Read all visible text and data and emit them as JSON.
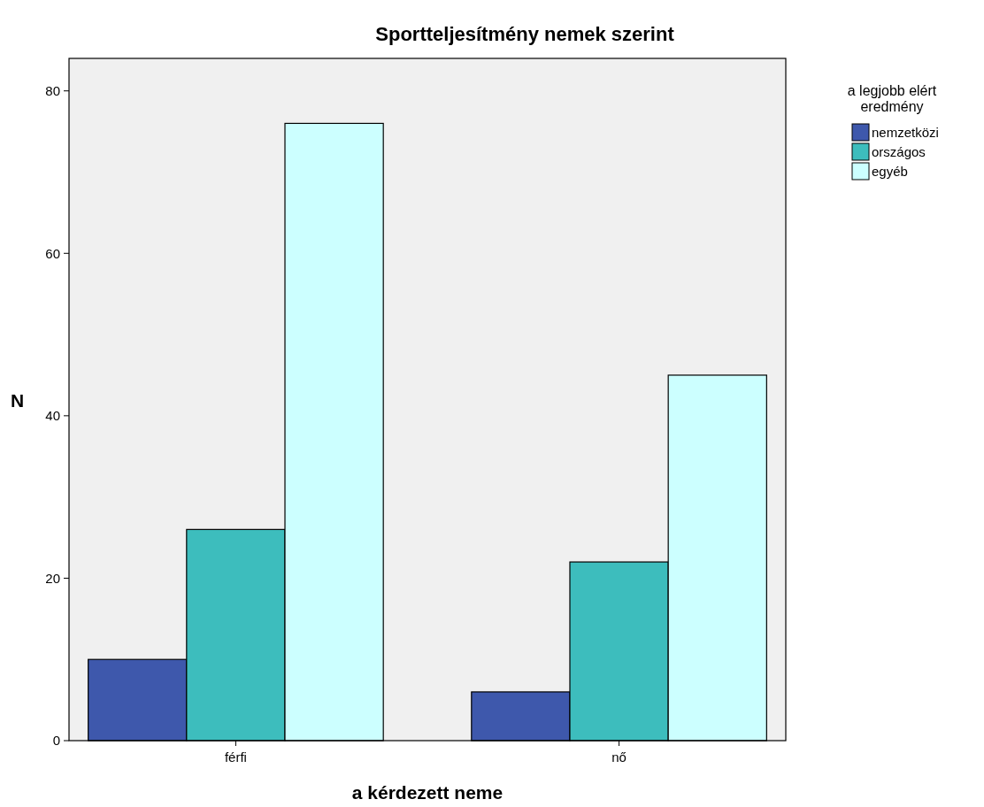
{
  "chart_data": {
    "type": "bar",
    "title": "Sportteljesítmény nemek szerint",
    "xlabel": "a kérdezett neme",
    "ylabel": "N",
    "legend_title": "a legjobb elért eredmény",
    "categories": [
      "férfi",
      "nő"
    ],
    "series": [
      {
        "name": "nemzetközi",
        "color": "#3e58ac",
        "values": [
          10,
          6
        ]
      },
      {
        "name": "országos",
        "color": "#3dbdbd",
        "values": [
          26,
          22
        ]
      },
      {
        "name": "egyéb",
        "color": "#ccffff",
        "values": [
          76,
          45
        ]
      }
    ],
    "ylim": [
      0,
      84
    ],
    "yticks": [
      0,
      20,
      40,
      60,
      80
    ],
    "legend": "right"
  }
}
